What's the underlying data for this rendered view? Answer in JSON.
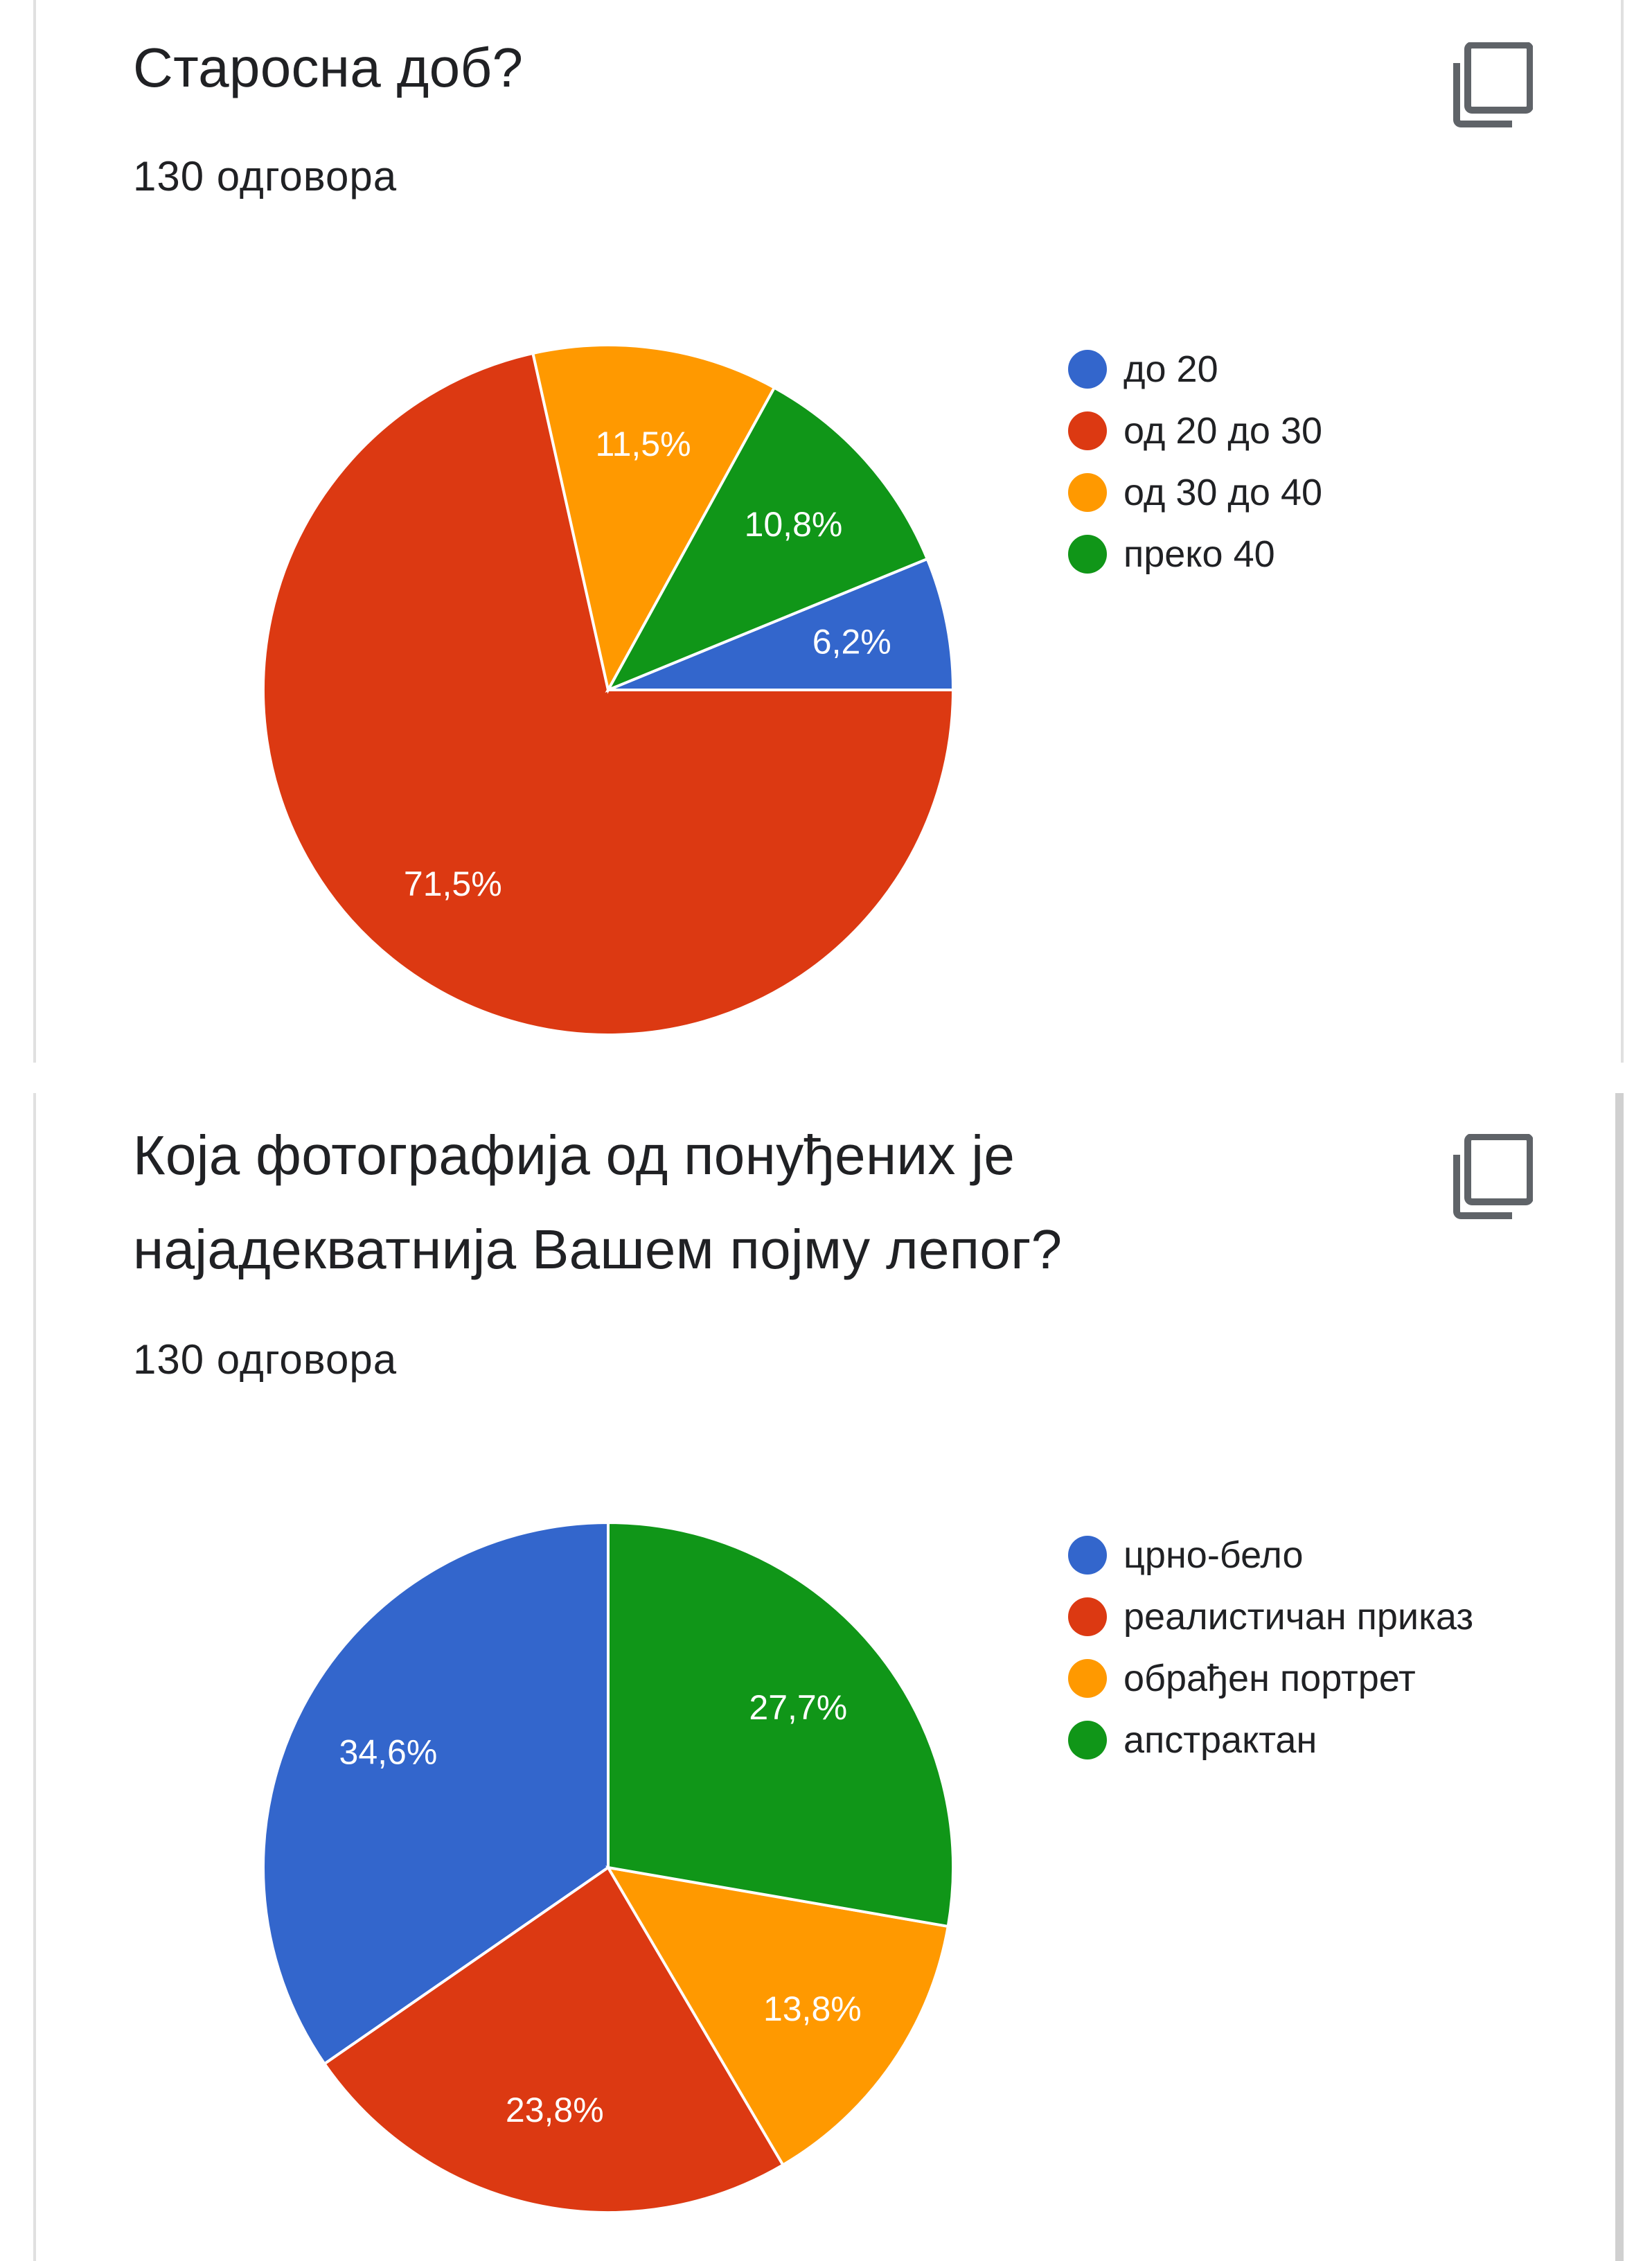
{
  "questions": [
    {
      "title": "Старосна доб?",
      "responses": "130 одговора",
      "chart_data": {
        "type": "pie",
        "categories": [
          "до 20",
          "од 20 до 30",
          "од 30 до 40",
          "преко 40"
        ],
        "values": [
          6.2,
          71.5,
          11.5,
          10.8
        ],
        "value_labels": [
          "6,2%",
          "71,5%",
          "11,5%",
          "10,8%"
        ],
        "colors": [
          "#3366cc",
          "#dc3912",
          "#ff9900",
          "#109618"
        ],
        "legend_position": "right"
      }
    },
    {
      "title": "Која фотографија од понуђених је\nнајадекватнија Вашем појму лепог?",
      "responses": "130 одговора",
      "chart_data": {
        "type": "pie",
        "categories": [
          "црно-бело",
          "реалистичан приказ",
          "обрађен портрет",
          "апстрактан"
        ],
        "values": [
          34.6,
          23.8,
          13.8,
          27.7
        ],
        "value_labels": [
          "34,6%",
          "23,8%",
          "13,8%",
          "27,7%"
        ],
        "colors": [
          "#3366cc",
          "#dc3912",
          "#ff9900",
          "#109618"
        ],
        "legend_position": "right"
      }
    }
  ],
  "icons": {
    "copy": "copy-icon"
  }
}
